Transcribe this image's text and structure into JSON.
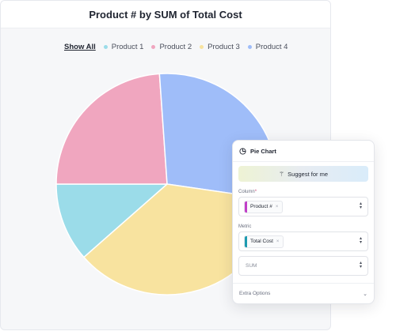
{
  "chart_title": "Product # by SUM of Total Cost",
  "legend": {
    "show_all": "Show All",
    "items": [
      {
        "label": "Product 1",
        "color": "#9bdce9"
      },
      {
        "label": "Product 2",
        "color": "#f0a6bf"
      },
      {
        "label": "Product 3",
        "color": "#f8e39f"
      },
      {
        "label": "Product 4",
        "color": "#9fbdf9"
      }
    ]
  },
  "chart_data": {
    "type": "pie",
    "title": "Product # by SUM of Total Cost",
    "labels": [
      "Product 1",
      "Product 2",
      "Product 3",
      "Product 4"
    ],
    "values": [
      11.5,
      23.9,
      36.2,
      28.4
    ],
    "colors": [
      "#9bdce9",
      "#f0a6bf",
      "#f8e39f",
      "#9fbdf9"
    ],
    "legend_position": "top"
  },
  "panel": {
    "title": "Pie Chart",
    "suggest_label": "Suggest for me",
    "column": {
      "label": "Column",
      "required_mark": "*",
      "value": "Product #",
      "chip_color": "#c13fc8"
    },
    "metric": {
      "label": "Metric",
      "value": "Total Cost",
      "chip_color": "#1d9bb0"
    },
    "aggregation": {
      "value": "SUM"
    },
    "extra_options": "Extra Options"
  }
}
